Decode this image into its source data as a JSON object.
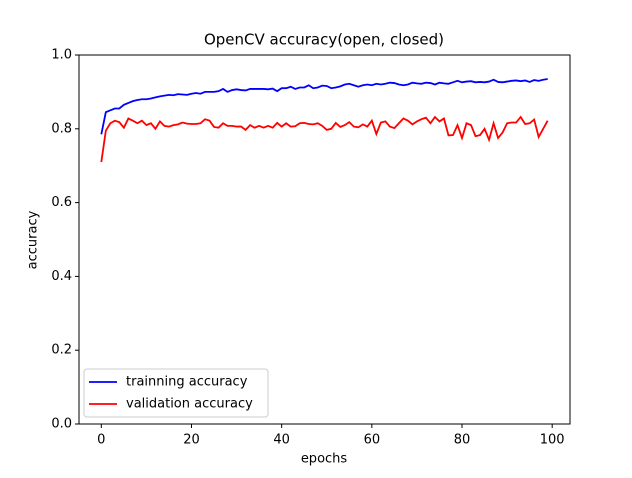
{
  "chart_data": {
    "type": "line",
    "title": "OpenCV accuracy(open, closed)",
    "x_label": "epochs",
    "y_label": "accuracy",
    "x": [
      0,
      1,
      2,
      3,
      4,
      5,
      6,
      7,
      8,
      9,
      10,
      11,
      12,
      13,
      14,
      15,
      16,
      17,
      18,
      19,
      20,
      21,
      22,
      23,
      24,
      25,
      26,
      27,
      28,
      29,
      30,
      31,
      32,
      33,
      34,
      35,
      36,
      37,
      38,
      39,
      40,
      41,
      42,
      43,
      44,
      45,
      46,
      47,
      48,
      49,
      50,
      51,
      52,
      53,
      54,
      55,
      56,
      57,
      58,
      59,
      60,
      61,
      62,
      63,
      64,
      65,
      66,
      67,
      68,
      69,
      70,
      71,
      72,
      73,
      74,
      75,
      76,
      77,
      78,
      79,
      80,
      81,
      82,
      83,
      84,
      85,
      86,
      87,
      88,
      89,
      90,
      91,
      92,
      93,
      94,
      95,
      96,
      97,
      98,
      99
    ],
    "series": [
      {
        "name": "trainning accuracy",
        "color": "#0000ff",
        "values": [
          0.785,
          0.845,
          0.85,
          0.855,
          0.855,
          0.865,
          0.87,
          0.875,
          0.878,
          0.88,
          0.88,
          0.882,
          0.885,
          0.888,
          0.89,
          0.892,
          0.891,
          0.894,
          0.893,
          0.892,
          0.895,
          0.897,
          0.895,
          0.9,
          0.9,
          0.9,
          0.902,
          0.908,
          0.9,
          0.905,
          0.907,
          0.905,
          0.904,
          0.908,
          0.908,
          0.908,
          0.908,
          0.907,
          0.909,
          0.902,
          0.91,
          0.91,
          0.914,
          0.908,
          0.912,
          0.912,
          0.918,
          0.91,
          0.912,
          0.917,
          0.916,
          0.91,
          0.912,
          0.915,
          0.92,
          0.922,
          0.918,
          0.914,
          0.918,
          0.92,
          0.918,
          0.922,
          0.92,
          0.922,
          0.925,
          0.924,
          0.92,
          0.918,
          0.92,
          0.925,
          0.923,
          0.922,
          0.925,
          0.924,
          0.92,
          0.925,
          0.923,
          0.922,
          0.926,
          0.93,
          0.926,
          0.928,
          0.929,
          0.926,
          0.927,
          0.926,
          0.928,
          0.933,
          0.927,
          0.926,
          0.928,
          0.93,
          0.931,
          0.929,
          0.931,
          0.927,
          0.932,
          0.93,
          0.933,
          0.935
        ]
      },
      {
        "name": "validation accuracy",
        "color": "#ff0000",
        "values": [
          0.71,
          0.795,
          0.815,
          0.822,
          0.818,
          0.803,
          0.828,
          0.822,
          0.815,
          0.822,
          0.81,
          0.815,
          0.8,
          0.82,
          0.808,
          0.806,
          0.81,
          0.812,
          0.817,
          0.814,
          0.813,
          0.813,
          0.815,
          0.826,
          0.822,
          0.805,
          0.803,
          0.815,
          0.808,
          0.808,
          0.806,
          0.806,
          0.797,
          0.81,
          0.803,
          0.808,
          0.803,
          0.808,
          0.803,
          0.816,
          0.806,
          0.815,
          0.806,
          0.807,
          0.815,
          0.816,
          0.813,
          0.812,
          0.815,
          0.808,
          0.797,
          0.8,
          0.816,
          0.805,
          0.81,
          0.818,
          0.806,
          0.804,
          0.812,
          0.806,
          0.822,
          0.786,
          0.817,
          0.82,
          0.806,
          0.802,
          0.815,
          0.828,
          0.822,
          0.812,
          0.82,
          0.826,
          0.83,
          0.815,
          0.832,
          0.82,
          0.828,
          0.782,
          0.783,
          0.81,
          0.775,
          0.815,
          0.81,
          0.78,
          0.783,
          0.8,
          0.77,
          0.815,
          0.775,
          0.79,
          0.815,
          0.817,
          0.817,
          0.832,
          0.813,
          0.815,
          0.825,
          0.778,
          0.8,
          0.822
        ]
      }
    ],
    "xlim": [
      -4.95,
      103.95
    ],
    "xticks": [
      0,
      20,
      40,
      60,
      80,
      100
    ],
    "ylim": [
      0,
      1
    ],
    "yticks": [
      {
        "value": 0,
        "label": "0.0"
      },
      {
        "value": 0.2,
        "label": "0.2"
      },
      {
        "value": 0.4,
        "label": "0.4"
      },
      {
        "value": 0.6,
        "label": "0.6"
      },
      {
        "value": 0.8,
        "label": "0.8"
      },
      {
        "value": 1,
        "label": "1.0"
      }
    ],
    "legend": "lower left"
  }
}
